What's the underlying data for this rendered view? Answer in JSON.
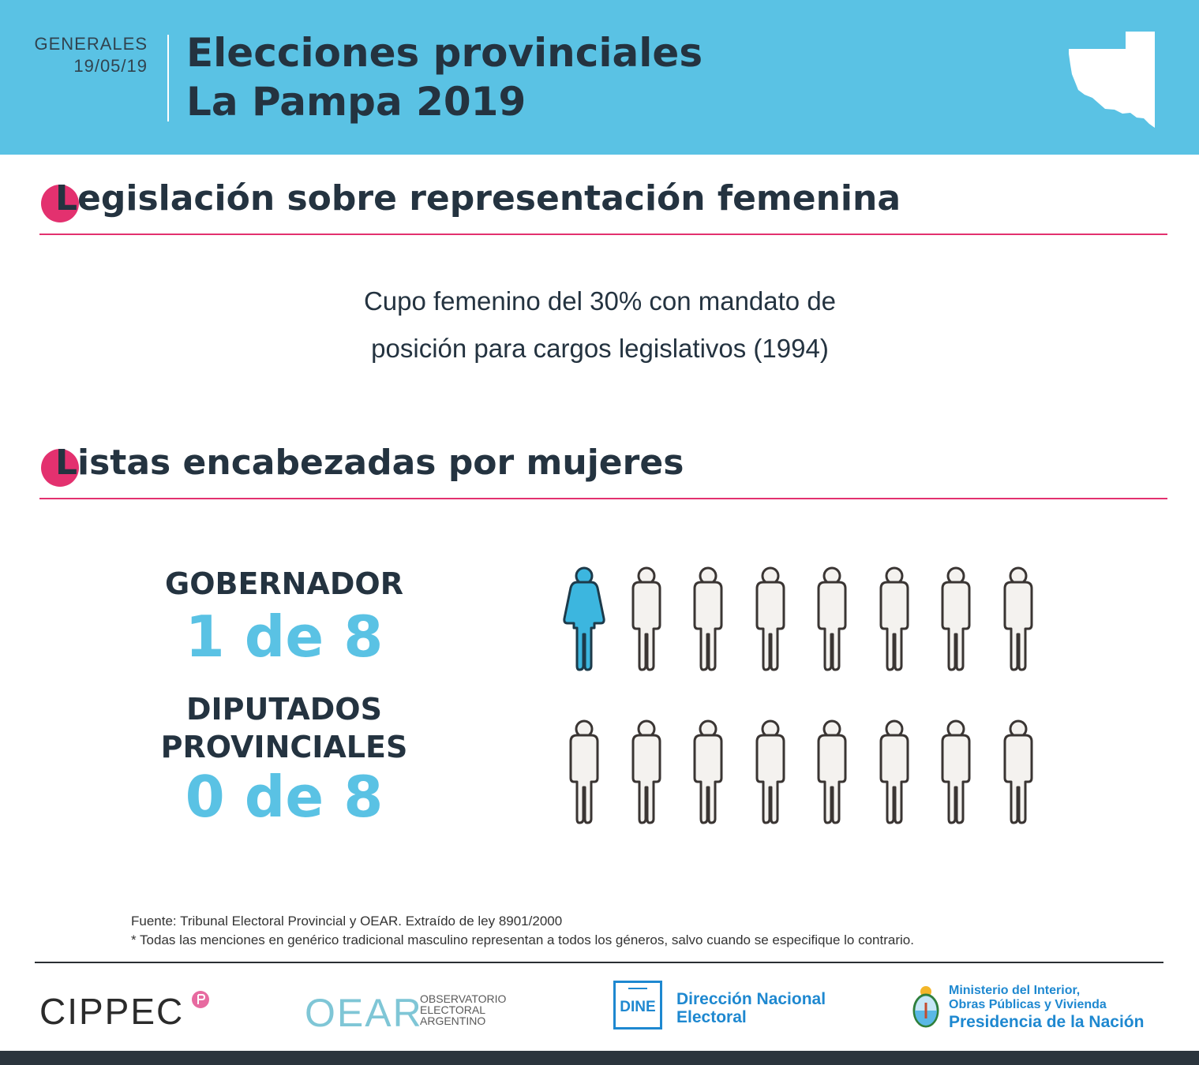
{
  "header": {
    "kicker_line1": "GENERALES",
    "kicker_line2": "19/05/19",
    "title_line1": "Elecciones provinciales",
    "title_line2": "La Pampa 2019"
  },
  "sections": {
    "legislation_title": "Legislación sobre representación femenina",
    "lists_title": "Listas encabezadas por mujeres"
  },
  "legislation": {
    "line1": "Cupo femenino del 30% con mandato de",
    "line2": "posición para cargos legislativos (1994)"
  },
  "rows": [
    {
      "label_line1": "GOBERNADOR",
      "label_line2": "",
      "count_text": "1 de 8",
      "women": 1,
      "total": 8
    },
    {
      "label_line1": "DIPUTADOS",
      "label_line2": "PROVINCIALES",
      "count_text": "0 de 8",
      "women": 0,
      "total": 8
    }
  ],
  "footer": {
    "source": "Fuente: Tribunal Electoral Provincial y OEAR. Extraído de ley 8901/2000",
    "note": "* Todas las menciones en genérico tradicional masculino representan a todos los géneros, salvo cuando se especifique lo contrario."
  },
  "logos": {
    "cippec": "CIPPEC",
    "oear": "OEAR",
    "oear_line1": "OBSERVATORIO",
    "oear_line2": "ELECTORAL",
    "oear_line3": "ARGENTINO",
    "dine": "DINE",
    "dine_line1": "Dirección Nacional",
    "dine_line2": "Electoral",
    "ministry_line1": "Ministerio del Interior,",
    "ministry_line2": "Obras Públicas y Vivienda",
    "ministry_line3": "Presidencia de la Nación"
  },
  "colors": {
    "header_bg": "#5ac2e4",
    "accent_pink": "#e3316f",
    "dark_text": "#243340",
    "woman_fill": "#3cb6df",
    "man_fill": "#f4f2ef"
  },
  "icons": {
    "map": "la-pampa-map-icon",
    "woman": "woman-icon",
    "man": "man-icon",
    "coat_of_arms": "coat-of-arms-icon"
  }
}
